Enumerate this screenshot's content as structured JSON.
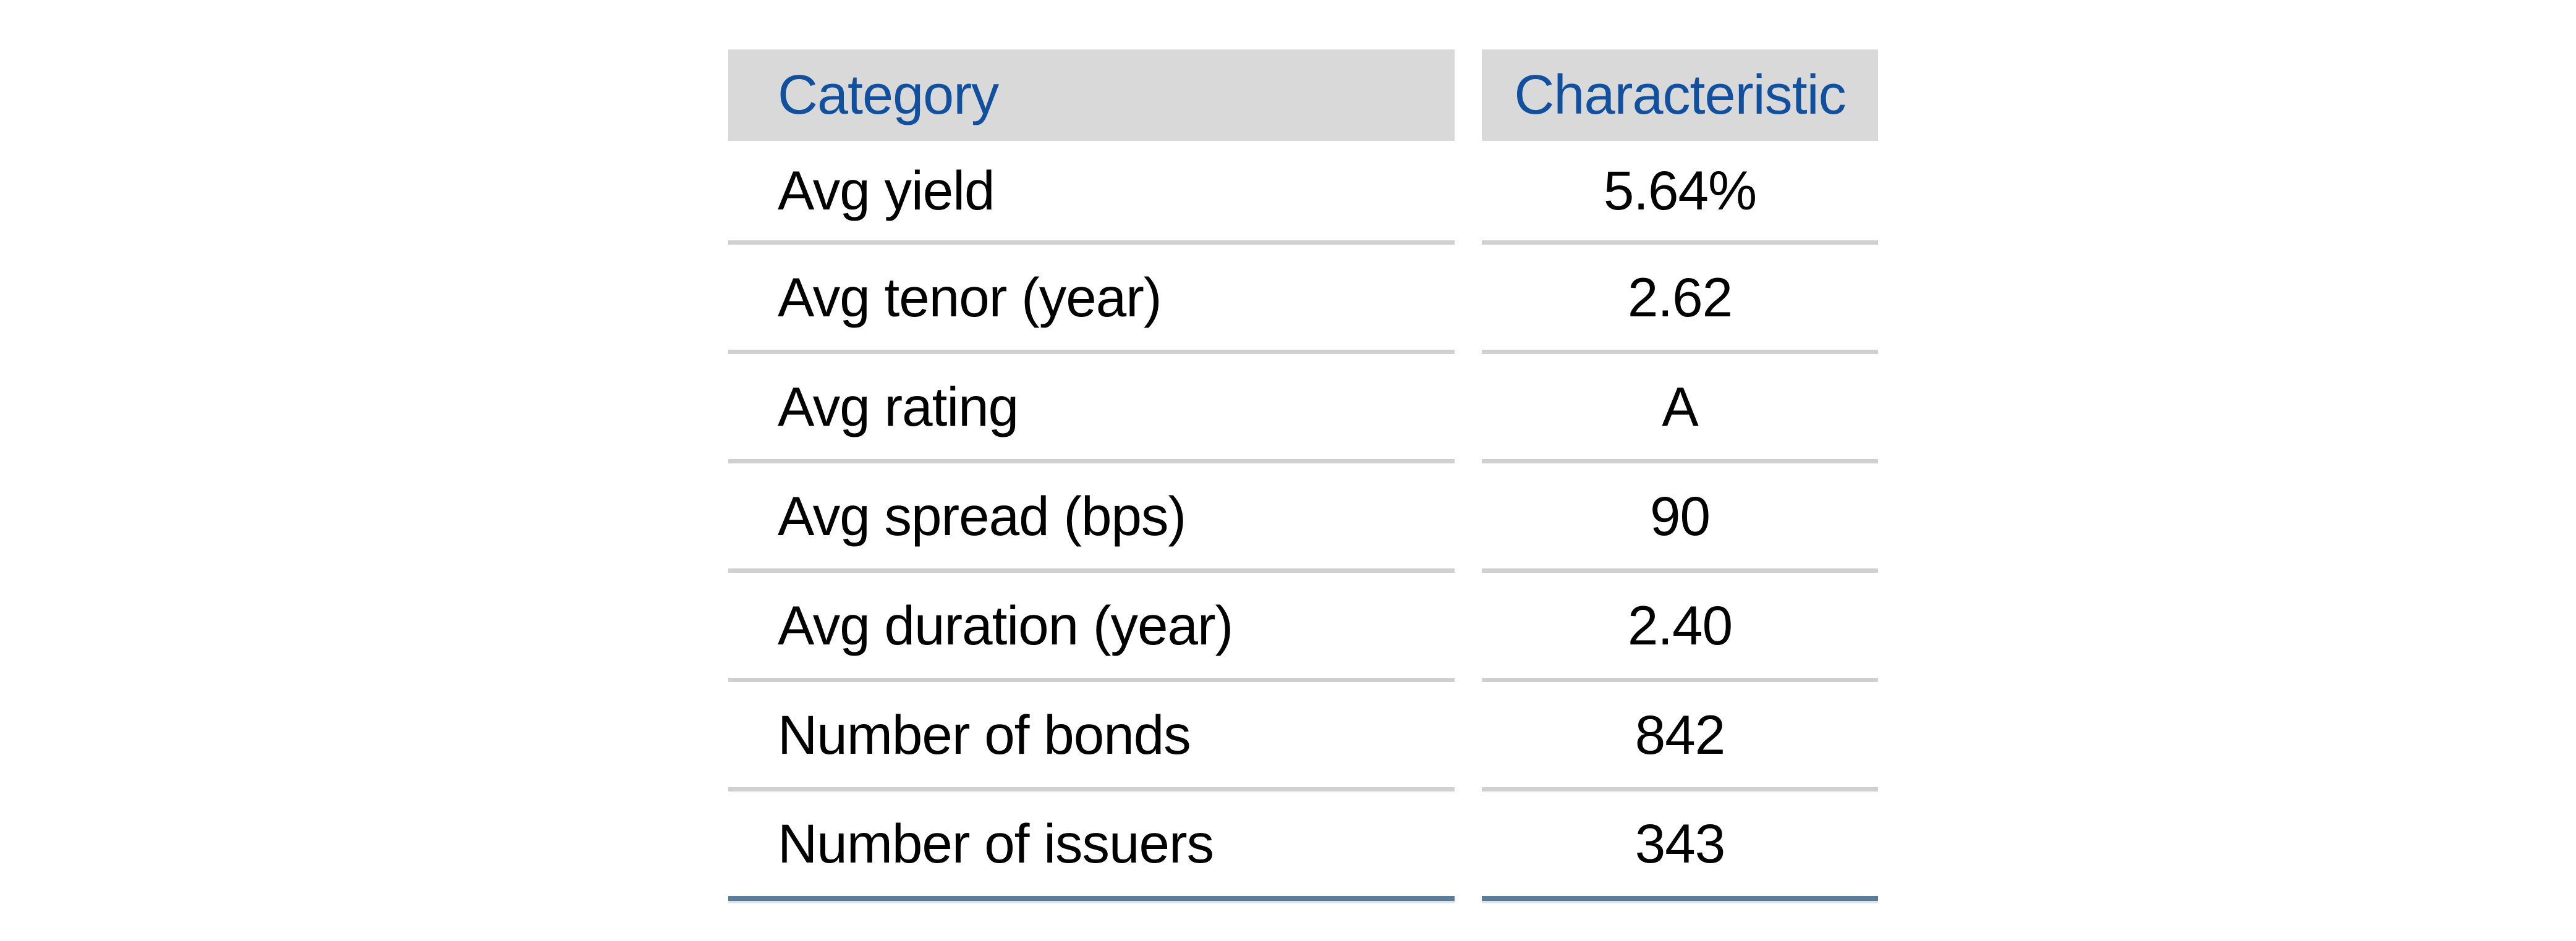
{
  "table": {
    "columns": [
      {
        "label": "Category"
      },
      {
        "label": "Characteristic"
      }
    ],
    "rows": [
      {
        "category": "Avg yield",
        "characteristic": "5.64%"
      },
      {
        "category": "Avg tenor (year)",
        "characteristic": "2.62"
      },
      {
        "category": "Avg rating",
        "characteristic": "A"
      },
      {
        "category": "Avg spread (bps)",
        "characteristic": "90"
      },
      {
        "category": "Avg duration (year)",
        "characteristic": "2.40"
      },
      {
        "category": "Number of bonds",
        "characteristic": "842"
      },
      {
        "category": "Number of issuers",
        "characteristic": "343"
      }
    ],
    "colors": {
      "header_bg": "#d9d9d9",
      "header_text": "#11509e",
      "row_separator": "#d0d0d0",
      "bottom_border": "#587e99",
      "body_text": "#000000"
    }
  },
  "chart_data": {
    "type": "table",
    "columns": [
      "Category",
      "Characteristic"
    ],
    "rows": [
      [
        "Avg yield",
        "5.64%"
      ],
      [
        "Avg tenor (year)",
        "2.62"
      ],
      [
        "Avg rating",
        "A"
      ],
      [
        "Avg spread (bps)",
        "90"
      ],
      [
        "Avg duration (year)",
        "2.40"
      ],
      [
        "Number of bonds",
        "842"
      ],
      [
        "Number of issuers",
        "343"
      ]
    ]
  }
}
